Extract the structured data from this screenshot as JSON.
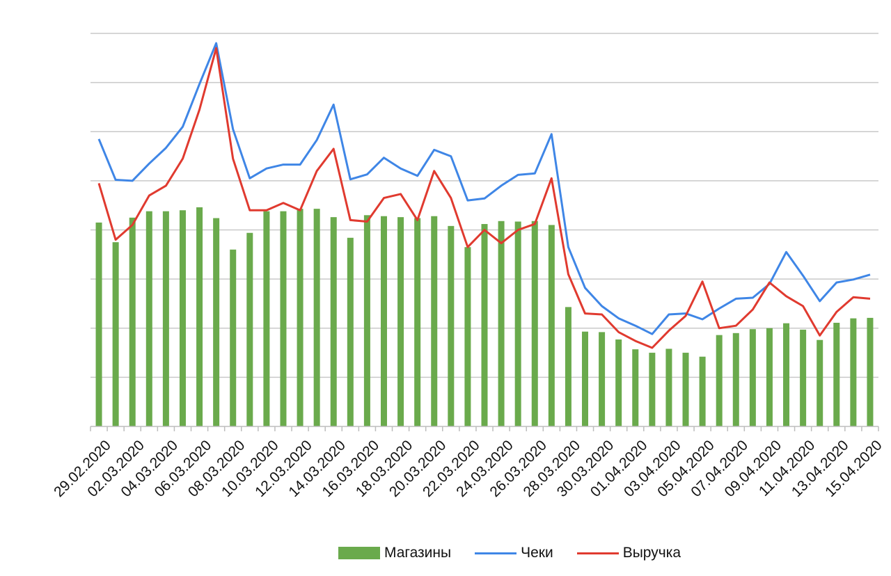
{
  "chart_data": {
    "type": "bar+line",
    "title": "",
    "xlabel": "",
    "ylabel": "",
    "y_tick_labels_shown": false,
    "grid": "horizontal",
    "legend_position": "bottom",
    "ylim": [
      0,
      8
    ],
    "categories": [
      "29.02.2020",
      "01.03.2020",
      "02.03.2020",
      "03.03.2020",
      "04.03.2020",
      "05.03.2020",
      "06.03.2020",
      "07.03.2020",
      "08.03.2020",
      "09.03.2020",
      "10.03.2020",
      "11.03.2020",
      "12.03.2020",
      "13.03.2020",
      "14.03.2020",
      "15.03.2020",
      "16.03.2020",
      "17.03.2020",
      "18.03.2020",
      "19.03.2020",
      "20.03.2020",
      "21.03.2020",
      "22.03.2020",
      "23.03.2020",
      "24.03.2020",
      "25.03.2020",
      "26.03.2020",
      "27.03.2020",
      "28.03.2020",
      "29.03.2020",
      "30.03.2020",
      "31.03.2020",
      "01.04.2020",
      "02.04.2020",
      "03.04.2020",
      "04.04.2020",
      "05.04.2020",
      "06.04.2020",
      "07.04.2020",
      "08.04.2020",
      "09.04.2020",
      "10.04.2020",
      "11.04.2020",
      "12.04.2020",
      "13.04.2020",
      "14.04.2020",
      "15.04.2020"
    ],
    "tick_labels": [
      "29.02.2020",
      "02.03.2020",
      "04.03.2020",
      "06.03.2020",
      "08.03.2020",
      "10.03.2020",
      "12.03.2020",
      "14.03.2020",
      "16.03.2020",
      "18.03.2020",
      "20.03.2020",
      "22.03.2020",
      "24.03.2020",
      "26.03.2020",
      "28.03.2020",
      "30.03.2020",
      "01.04.2020",
      "03.04.2020",
      "05.04.2020",
      "07.04.2020",
      "09.04.2020",
      "11.04.2020",
      "13.04.2020",
      "15.04.2020"
    ],
    "series": [
      {
        "name": "Магазины",
        "kind": "bar",
        "color": "#6aaa4c",
        "values": [
          4.15,
          3.75,
          4.25,
          4.38,
          4.38,
          4.4,
          4.46,
          4.24,
          3.6,
          3.94,
          4.38,
          4.38,
          4.43,
          4.43,
          4.26,
          3.84,
          4.3,
          4.28,
          4.26,
          4.24,
          4.28,
          4.08,
          3.65,
          4.12,
          4.18,
          4.17,
          4.18,
          4.1,
          2.43,
          1.93,
          1.92,
          1.77,
          1.57,
          1.5,
          1.58,
          1.5,
          1.42,
          1.86,
          1.9,
          1.98,
          2.0,
          2.1,
          1.97,
          1.76,
          2.11,
          2.2,
          2.21
        ]
      },
      {
        "name": "Чеки",
        "kind": "line",
        "color": "#3f86e6",
        "values": [
          5.85,
          5.02,
          5.0,
          5.35,
          5.67,
          6.1,
          6.97,
          7.8,
          6.05,
          5.05,
          5.25,
          5.33,
          5.33,
          5.83,
          6.55,
          5.03,
          5.13,
          5.47,
          5.25,
          5.1,
          5.63,
          5.5,
          4.6,
          4.64,
          4.9,
          5.12,
          5.15,
          5.95,
          3.65,
          2.82,
          2.45,
          2.2,
          2.05,
          1.88,
          2.28,
          2.3,
          2.18,
          2.4,
          2.6,
          2.62,
          2.9,
          3.55,
          3.07,
          2.55,
          2.93,
          2.99,
          3.09
        ]
      },
      {
        "name": "Выручка",
        "kind": "line",
        "color": "#e03a2f",
        "values": [
          4.95,
          3.8,
          4.1,
          4.7,
          4.9,
          5.45,
          6.45,
          7.7,
          5.45,
          4.4,
          4.4,
          4.55,
          4.4,
          5.2,
          5.65,
          4.2,
          4.17,
          4.65,
          4.73,
          4.2,
          5.2,
          4.65,
          3.65,
          4.0,
          3.73,
          4.0,
          4.12,
          5.05,
          3.1,
          2.3,
          2.28,
          1.92,
          1.74,
          1.6,
          1.95,
          2.25,
          2.95,
          2.0,
          2.05,
          2.38,
          2.93,
          2.65,
          2.45,
          1.85,
          2.33,
          2.63,
          2.6
        ]
      }
    ]
  }
}
